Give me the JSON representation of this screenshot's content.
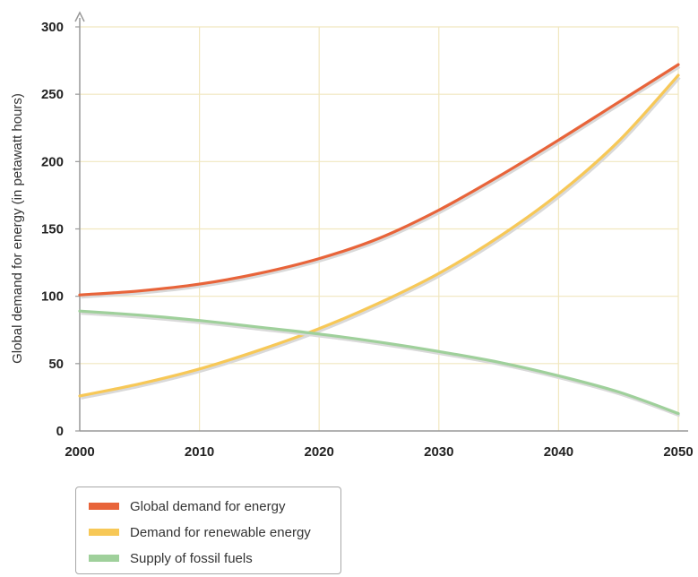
{
  "chart_data": {
    "type": "line",
    "ylabel": "Global demand for energy (in petawatt hours)",
    "xlabel": "",
    "xlim": [
      2000,
      2050
    ],
    "ylim": [
      0,
      300
    ],
    "x_ticks": [
      "2000",
      "2010",
      "2020",
      "2030",
      "2040",
      "2050"
    ],
    "y_ticks": [
      "0",
      "50",
      "100",
      "150",
      "200",
      "250",
      "300"
    ],
    "grid": true,
    "legend_position": "bottom-left",
    "x": [
      2000,
      2005,
      2010,
      2015,
      2020,
      2025,
      2030,
      2035,
      2040,
      2045,
      2050
    ],
    "series": [
      {
        "name": "Global demand for energy",
        "color": "#e8643a",
        "values": [
          101,
          104,
          109,
          117,
          128,
          143,
          164,
          189,
          216,
          244,
          272
        ]
      },
      {
        "name": "Demand for renewable energy",
        "color": "#f7c857",
        "values": [
          26,
          35,
          46,
          60,
          76,
          95,
          117,
          144,
          176,
          215,
          264
        ]
      },
      {
        "name": "Supply of fossil fuels",
        "color": "#9fd09b",
        "values": [
          89,
          86,
          82,
          77,
          72,
          66,
          59,
          51,
          41,
          29,
          13
        ]
      }
    ]
  }
}
